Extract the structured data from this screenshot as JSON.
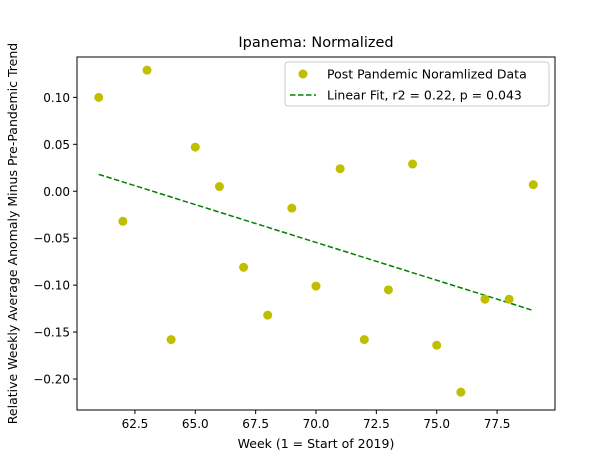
{
  "chart_data": {
    "type": "scatter",
    "title": "Ipanema: Normalized",
    "xlabel": "Week (1 = Start of 2019)",
    "ylabel": "Relative Weekly Average Anomaly Minus Pre-Pandemic Trend",
    "xlim": [
      60.1,
      79.9
    ],
    "ylim": [
      -0.233,
      0.143
    ],
    "xticks": [
      62.5,
      65.0,
      67.5,
      70.0,
      72.5,
      75.0,
      77.5
    ],
    "xtick_labels": [
      "62.5",
      "65.0",
      "67.5",
      "70.0",
      "72.5",
      "75.0",
      "77.5"
    ],
    "yticks": [
      0.1,
      0.05,
      0.0,
      -0.05,
      -0.1,
      -0.15,
      -0.2
    ],
    "ytick_labels": [
      "0.10",
      "0.05",
      "0.00",
      "−0.05",
      "−0.10",
      "−0.15",
      "−0.20"
    ],
    "legend_position": "top-right",
    "series": [
      {
        "name": "Post Pandemic Noramlized Data",
        "kind": "scatter",
        "color": "#bfbf00",
        "x": [
          61,
          62,
          63,
          64,
          65,
          66,
          67,
          68,
          69,
          70,
          71,
          72,
          73,
          74,
          75,
          76,
          77,
          78,
          79
        ],
        "y": [
          0.1,
          -0.032,
          0.129,
          -0.158,
          0.047,
          0.005,
          -0.081,
          -0.132,
          -0.018,
          -0.101,
          0.024,
          -0.158,
          -0.105,
          0.029,
          -0.164,
          -0.214,
          -0.115,
          -0.115,
          0.007
        ]
      },
      {
        "name": "Linear Fit, r2 = 0.22, p = 0.043",
        "kind": "line",
        "dashed": true,
        "color": "#008000",
        "x": [
          61,
          79
        ],
        "y": [
          0.018,
          -0.127
        ]
      }
    ]
  }
}
